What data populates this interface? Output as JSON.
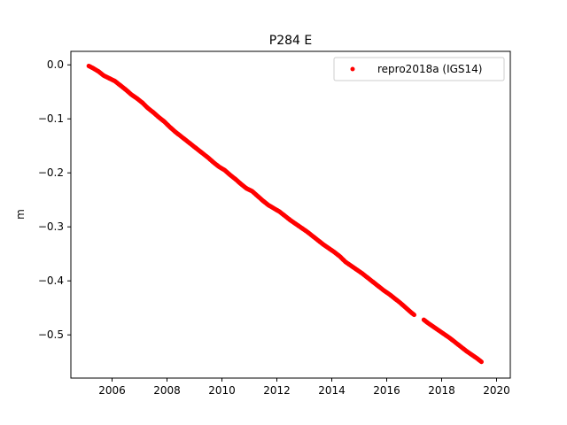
{
  "chart_data": {
    "type": "scatter",
    "title": "P284 E",
    "xlabel": "",
    "ylabel": "m",
    "xlim": [
      2004.5,
      2020.5
    ],
    "ylim": [
      -0.58,
      0.025
    ],
    "xticks": [
      2006,
      2008,
      2010,
      2012,
      2014,
      2016,
      2018,
      2020
    ],
    "xtick_labels": [
      "2006",
      "2008",
      "2010",
      "2012",
      "2014",
      "2016",
      "2018",
      "2020"
    ],
    "yticks": [
      0.0,
      -0.1,
      -0.2,
      -0.3,
      -0.4,
      -0.5
    ],
    "ytick_labels": [
      "0.0",
      "−0.1",
      "−0.2",
      "−0.3",
      "−0.4",
      "−0.5"
    ],
    "grid": false,
    "legend_position": "top-right",
    "series": [
      {
        "name": "repro2018a (IGS14)",
        "color": "#ff0000",
        "marker": "dot",
        "points": [
          [
            2005.15,
            -0.002
          ],
          [
            2005.3,
            -0.006
          ],
          [
            2005.5,
            -0.012
          ],
          [
            2005.7,
            -0.02
          ],
          [
            2005.9,
            -0.025
          ],
          [
            2006.1,
            -0.03
          ],
          [
            2006.3,
            -0.038
          ],
          [
            2006.5,
            -0.046
          ],
          [
            2006.7,
            -0.055
          ],
          [
            2006.9,
            -0.062
          ],
          [
            2007.1,
            -0.07
          ],
          [
            2007.3,
            -0.08
          ],
          [
            2007.5,
            -0.088
          ],
          [
            2007.7,
            -0.097
          ],
          [
            2007.9,
            -0.105
          ],
          [
            2008.1,
            -0.115
          ],
          [
            2008.3,
            -0.124
          ],
          [
            2008.5,
            -0.132
          ],
          [
            2008.7,
            -0.14
          ],
          [
            2008.9,
            -0.148
          ],
          [
            2009.1,
            -0.156
          ],
          [
            2009.3,
            -0.164
          ],
          [
            2009.5,
            -0.172
          ],
          [
            2009.7,
            -0.181
          ],
          [
            2009.9,
            -0.189
          ],
          [
            2010.1,
            -0.195
          ],
          [
            2010.3,
            -0.204
          ],
          [
            2010.5,
            -0.212
          ],
          [
            2010.7,
            -0.221
          ],
          [
            2010.9,
            -0.229
          ],
          [
            2011.1,
            -0.234
          ],
          [
            2011.3,
            -0.243
          ],
          [
            2011.5,
            -0.252
          ],
          [
            2011.7,
            -0.26
          ],
          [
            2011.9,
            -0.266
          ],
          [
            2012.1,
            -0.272
          ],
          [
            2012.3,
            -0.28
          ],
          [
            2012.5,
            -0.288
          ],
          [
            2012.7,
            -0.295
          ],
          [
            2012.9,
            -0.302
          ],
          [
            2013.1,
            -0.309
          ],
          [
            2013.3,
            -0.317
          ],
          [
            2013.5,
            -0.325
          ],
          [
            2013.7,
            -0.333
          ],
          [
            2013.9,
            -0.34
          ],
          [
            2014.1,
            -0.347
          ],
          [
            2014.3,
            -0.355
          ],
          [
            2014.5,
            -0.365
          ],
          [
            2014.7,
            -0.372
          ],
          [
            2014.9,
            -0.379
          ],
          [
            2015.1,
            -0.386
          ],
          [
            2015.3,
            -0.394
          ],
          [
            2015.5,
            -0.402
          ],
          [
            2015.7,
            -0.41
          ],
          [
            2015.9,
            -0.418
          ],
          [
            2016.1,
            -0.425
          ],
          [
            2016.3,
            -0.433
          ],
          [
            2016.5,
            -0.441
          ],
          [
            2016.7,
            -0.45
          ],
          [
            2016.9,
            -0.459
          ],
          [
            2017.0,
            -0.463
          ],
          [
            2017.35,
            -0.472
          ],
          [
            2017.5,
            -0.478
          ],
          [
            2017.7,
            -0.485
          ],
          [
            2017.9,
            -0.492
          ],
          [
            2018.1,
            -0.499
          ],
          [
            2018.3,
            -0.506
          ],
          [
            2018.5,
            -0.514
          ],
          [
            2018.7,
            -0.522
          ],
          [
            2018.9,
            -0.53
          ],
          [
            2019.1,
            -0.537
          ],
          [
            2019.3,
            -0.544
          ],
          [
            2019.45,
            -0.55
          ]
        ]
      }
    ]
  }
}
